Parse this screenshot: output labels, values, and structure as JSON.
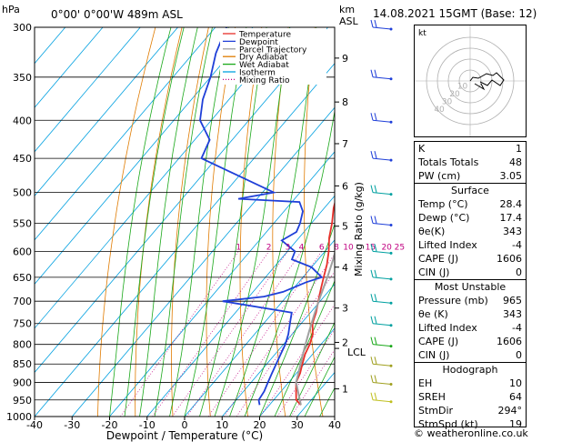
{
  "header": {
    "hpa_label": "hPa",
    "location": "0°00' 0°00'W  489m  ASL",
    "km_label": "km",
    "asl_label": "ASL",
    "datetime": "14.08.2021  15GMT  (Base: 12)"
  },
  "legend": [
    {
      "label": "Temperature",
      "color": "#e8302a",
      "style": "solid"
    },
    {
      "label": "Dewpoint",
      "color": "#1f3fd8",
      "style": "solid"
    },
    {
      "label": "Parcel Trajectory",
      "color": "#a0a0a0",
      "style": "solid"
    },
    {
      "label": "Dry Adiabat",
      "color": "#e07b00",
      "style": "solid"
    },
    {
      "label": "Wet Adiabat",
      "color": "#1aa81a",
      "style": "solid"
    },
    {
      "label": "Isotherm",
      "color": "#00a0e0",
      "style": "solid"
    },
    {
      "label": "Mixing Ratio",
      "color": "#c00080",
      "style": "dotted"
    }
  ],
  "chart_data": {
    "type": "line",
    "xlabel": "Dewpoint / Temperature (°C)",
    "y2label": "Mixing Ratio (g/kg)",
    "xlim": [
      -40,
      40
    ],
    "ylim": [
      1000,
      300
    ],
    "x_ticks": [
      -40,
      -30,
      -20,
      -10,
      0,
      10,
      20,
      30,
      40
    ],
    "pressure_levels": [
      300,
      350,
      400,
      450,
      500,
      550,
      600,
      650,
      700,
      750,
      800,
      850,
      900,
      950,
      1000
    ],
    "km_ticks": [
      {
        "label": "1",
        "p": 918
      },
      {
        "label": "2",
        "p": 795
      },
      {
        "label": "3",
        "p": 715
      },
      {
        "label": "4",
        "p": 630
      },
      {
        "label": "5",
        "p": 555
      },
      {
        "label": "6",
        "p": 490
      },
      {
        "label": "7",
        "p": 430
      },
      {
        "label": "8",
        "p": 378
      },
      {
        "label": "9",
        "p": 330
      }
    ],
    "lcl": {
      "label": "LCL",
      "p": 810
    },
    "mixing_ratio_labels": [
      "1",
      "2",
      "3",
      "4",
      "6",
      "8",
      "10",
      "15",
      "20",
      "25"
    ],
    "series": [
      {
        "name": "Temperature",
        "color": "#e8302a",
        "points": [
          [
            28.4,
            965
          ],
          [
            26,
            950
          ],
          [
            24,
            925
          ],
          [
            22,
            900
          ],
          [
            21,
            875
          ],
          [
            19.5,
            850
          ],
          [
            18,
            825
          ],
          [
            17,
            800
          ],
          [
            15.5,
            775
          ],
          [
            13,
            750
          ],
          [
            11.5,
            725
          ],
          [
            9.5,
            700
          ],
          [
            7.5,
            675
          ],
          [
            5.5,
            650
          ],
          [
            3.5,
            625
          ],
          [
            1,
            600
          ],
          [
            -2,
            575
          ],
          [
            -4.5,
            550
          ],
          [
            -7.5,
            525
          ],
          [
            -10,
            500
          ],
          [
            -14,
            475
          ],
          [
            -17,
            450
          ],
          [
            -21,
            425
          ],
          [
            -25,
            400
          ],
          [
            -30,
            375
          ],
          [
            -35,
            350
          ],
          [
            -40.5,
            325
          ],
          [
            -46,
            300
          ]
        ]
      },
      {
        "name": "Dewpoint",
        "color": "#1f3fd8",
        "points": [
          [
            17.4,
            965
          ],
          [
            16,
            950
          ],
          [
            15.5,
            925
          ],
          [
            14.5,
            900
          ],
          [
            13.5,
            875
          ],
          [
            12.5,
            850
          ],
          [
            11.5,
            825
          ],
          [
            10.5,
            800
          ],
          [
            9,
            775
          ],
          [
            7,
            750
          ],
          [
            5,
            725
          ],
          [
            -16,
            700
          ],
          [
            -6,
            690
          ],
          [
            -2,
            680
          ],
          [
            2,
            660
          ],
          [
            5,
            650
          ],
          [
            0,
            630
          ],
          [
            -7,
            615
          ],
          [
            -8,
            600
          ],
          [
            -14,
            580
          ],
          [
            -12,
            565
          ],
          [
            -13,
            550
          ],
          [
            -15,
            530
          ],
          [
            -18,
            515
          ],
          [
            -35,
            510
          ],
          [
            -27,
            500
          ],
          [
            -54,
            450
          ],
          [
            -56,
            425
          ],
          [
            -63,
            400
          ],
          [
            -67,
            375
          ],
          [
            -70,
            350
          ],
          [
            -74,
            325
          ],
          [
            -77,
            300
          ]
        ]
      },
      {
        "name": "Parcel Trajectory",
        "color": "#a0a0a0",
        "points": [
          [
            28.4,
            965
          ],
          [
            22,
            900
          ],
          [
            18.4,
            840
          ],
          [
            16.5,
            810
          ],
          [
            14,
            770
          ],
          [
            11.5,
            730
          ],
          [
            9,
            690
          ],
          [
            6.5,
            650
          ],
          [
            4,
            615
          ],
          [
            1,
            580
          ],
          [
            -2,
            545
          ],
          [
            -5.5,
            510
          ],
          [
            -9.5,
            475
          ],
          [
            -14,
            440
          ],
          [
            -19,
            405
          ],
          [
            -25,
            370
          ],
          [
            -31,
            335
          ],
          [
            -37,
            300
          ]
        ]
      }
    ]
  },
  "hodograph": {
    "corner_label": "kt",
    "ring_labels": [
      "10",
      "20",
      "30",
      "40"
    ]
  },
  "indices": {
    "rows1": [
      {
        "label": "K",
        "value": "1"
      },
      {
        "label": "Totals Totals",
        "value": "48"
      },
      {
        "label": "PW (cm)",
        "value": "3.05"
      }
    ],
    "surface_title": "Surface",
    "surface": [
      {
        "label": "Temp (°C)",
        "value": "28.4"
      },
      {
        "label": "Dewp (°C)",
        "value": "17.4"
      },
      {
        "label": "θe(K)",
        "value": "343"
      },
      {
        "label": "Lifted Index",
        "value": "-4"
      },
      {
        "label": "CAPE (J)",
        "value": "1606"
      },
      {
        "label": "CIN (J)",
        "value": "0"
      }
    ],
    "unstable_title": "Most Unstable",
    "unstable": [
      {
        "label": "Pressure (mb)",
        "value": "965"
      },
      {
        "label": "θe (K)",
        "value": "343"
      },
      {
        "label": "Lifted Index",
        "value": "-4"
      },
      {
        "label": "CAPE (J)",
        "value": "1606"
      },
      {
        "label": "CIN (J)",
        "value": "0"
      }
    ],
    "hodo_title": "Hodograph",
    "hodo": [
      {
        "label": "EH",
        "value": "10"
      },
      {
        "label": "SREH",
        "value": "64"
      },
      {
        "label": "StmDir",
        "value": "294°"
      },
      {
        "label": "StmSpd (kt)",
        "value": "19"
      }
    ]
  },
  "footer": {
    "copyright": "© weatheronline.co.uk"
  }
}
